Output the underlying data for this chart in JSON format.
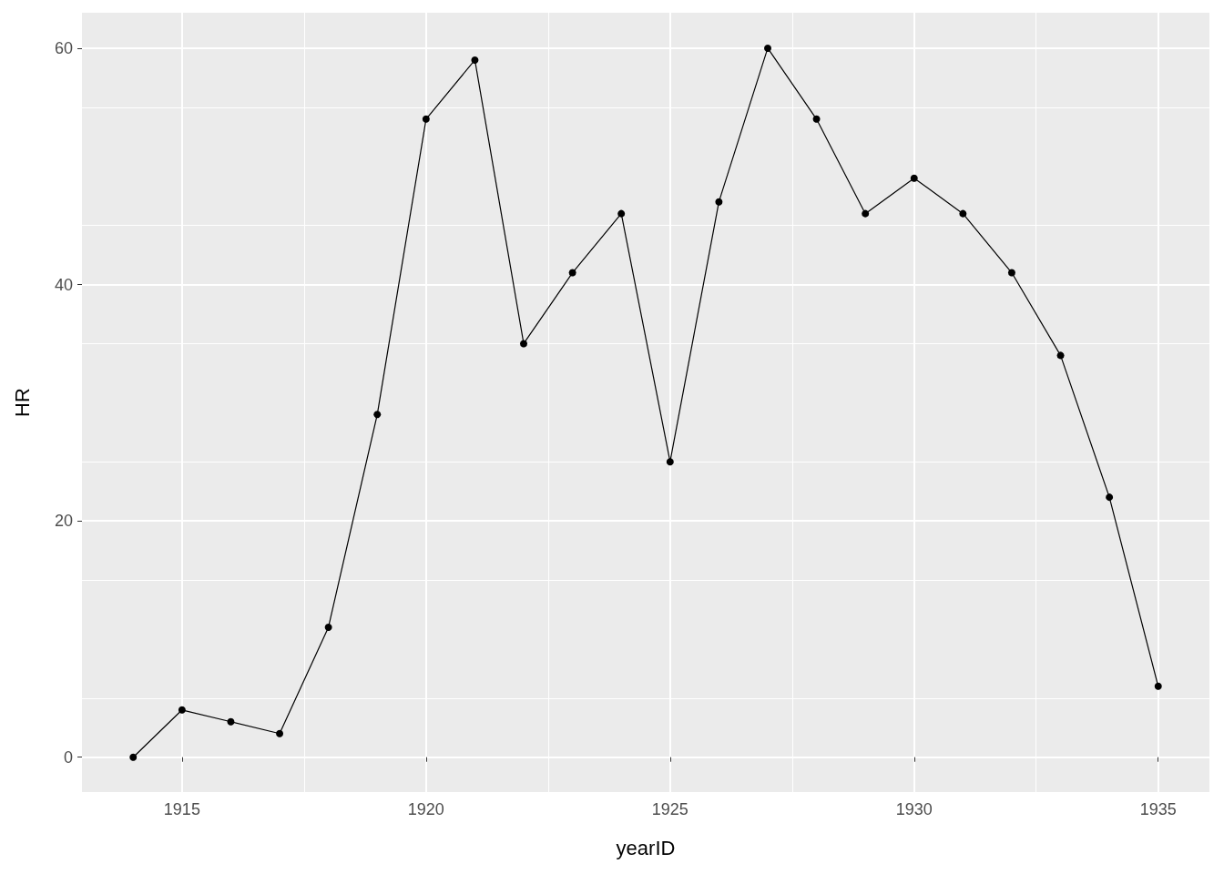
{
  "chart_data": {
    "type": "line",
    "xlabel": "yearID",
    "ylabel": "HR",
    "x": [
      1914,
      1915,
      1916,
      1917,
      1918,
      1919,
      1920,
      1921,
      1922,
      1923,
      1924,
      1925,
      1926,
      1927,
      1928,
      1929,
      1930,
      1931,
      1932,
      1933,
      1934,
      1935
    ],
    "series": [
      {
        "color": "#000000",
        "values": [
          0,
          4,
          3,
          2,
          11,
          29,
          54,
          59,
          35,
          41,
          46,
          25,
          47,
          60,
          54,
          46,
          49,
          46,
          41,
          34,
          22,
          6
        ]
      }
    ],
    "xlim": [
      1912.95,
      1936.05
    ],
    "xticks": [
      1915,
      1920,
      1925,
      1930,
      1935
    ],
    "ylim": [
      -2.95,
      63
    ],
    "yticks": [
      0,
      20,
      40,
      60
    ],
    "grid": true,
    "marker": "circle",
    "line_style": "solid"
  }
}
